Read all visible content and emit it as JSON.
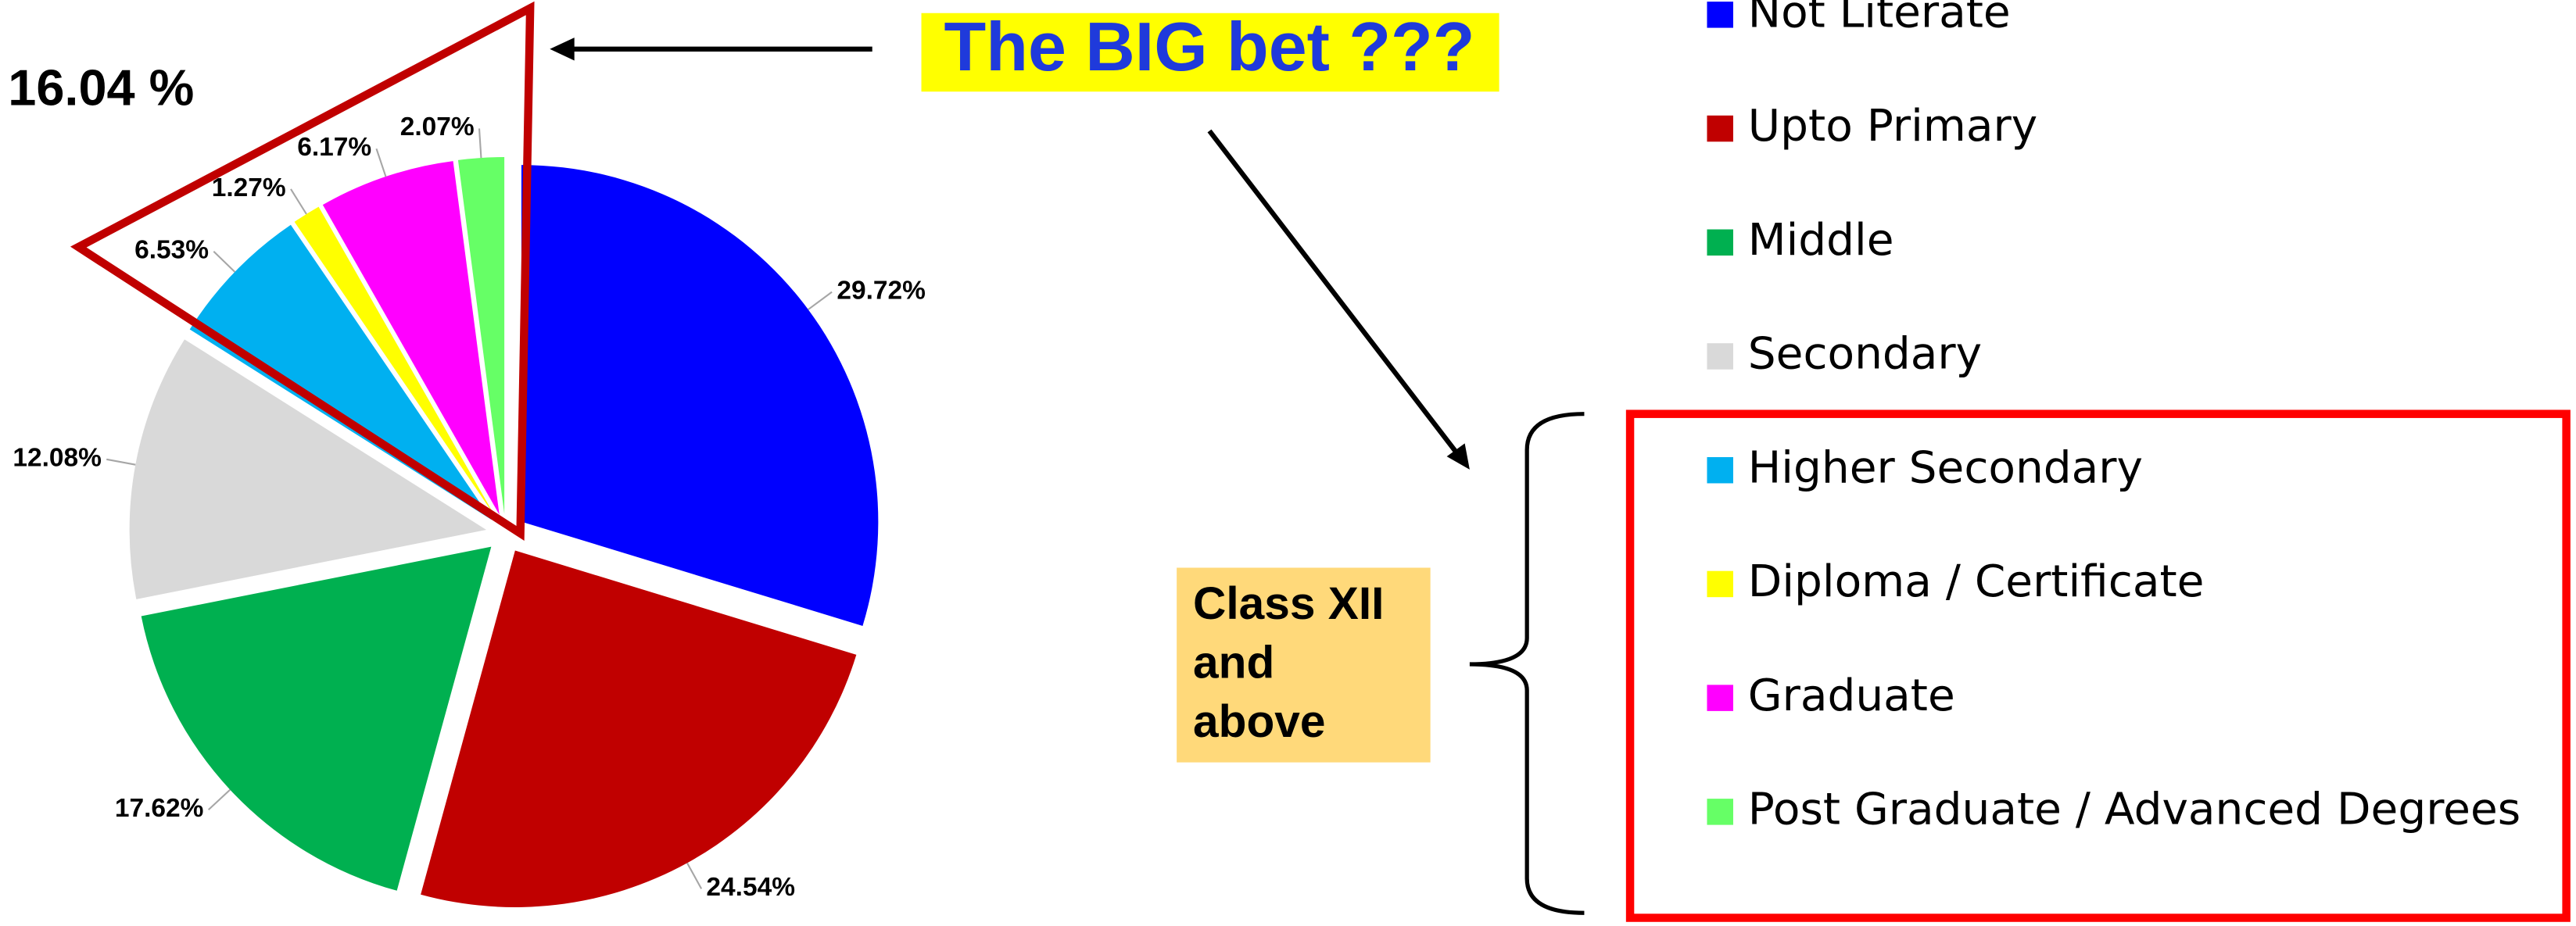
{
  "chart_data": {
    "type": "pie",
    "categories": [
      "Not Literate",
      "Upto Primary",
      "Middle",
      "Secondary",
      "Higher Secondary",
      "Diploma / Certificate",
      "Graduate",
      "Post Graduate / Advanced Degrees"
    ],
    "values": [
      29.72,
      24.54,
      17.62,
      12.08,
      6.53,
      1.27,
      6.17,
      2.07
    ],
    "value_labels": [
      "29.72%",
      "24.54%",
      "17.62%",
      "12.08%",
      "6.53%",
      "1.27%",
      "6.17%",
      "2.07%"
    ],
    "colors": [
      "#0000ff",
      "#c00000",
      "#00b050",
      "#d9d9d9",
      "#00b0f0",
      "#ffff00",
      "#ff00ff",
      "#66ff66"
    ],
    "legend": "right",
    "annotations": {
      "group_share": "16.04 %",
      "headline": "The BIG bet ???",
      "group_label": [
        "Class XII",
        "and",
        "above"
      ]
    }
  }
}
